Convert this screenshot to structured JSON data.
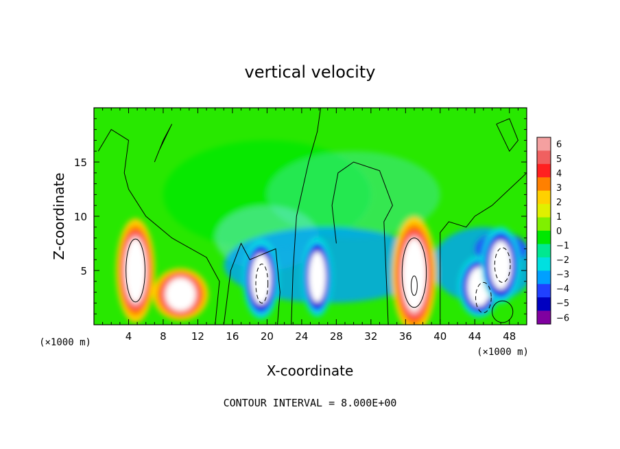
{
  "chart_data": {
    "type": "heatmap",
    "title": "vertical velocity",
    "xlabel": "X-coordinate",
    "ylabel": "Z-coordinate",
    "x_unit_label": "(×1000 m)",
    "y_unit_label": "(×1000 m)",
    "xlim": [
      0,
      50
    ],
    "ylim": [
      0,
      20
    ],
    "x_ticks": [
      "4",
      "8",
      "12",
      "16",
      "20",
      "24",
      "28",
      "32",
      "36",
      "40",
      "44",
      "48"
    ],
    "y_ticks": [
      "5",
      "10",
      "15"
    ],
    "footer": "CONTOUR INTERVAL = 8.000E+00",
    "colorbar": {
      "min": -6,
      "max": 6,
      "labels": [
        "6",
        "5",
        "4",
        "3",
        "2",
        "1",
        "0",
        "−1",
        "−2",
        "−3",
        "−4",
        "−5",
        "−6"
      ],
      "colors": [
        "#f4a0a0",
        "#f06060",
        "#ff2020",
        "#ff8000",
        "#ffd000",
        "#e0f000",
        "#80f000",
        "#00e800",
        "#00e890",
        "#00e0e0",
        "#00a0ff",
        "#2040ff",
        "#0000c0",
        "#8000a0"
      ]
    },
    "features": [
      {
        "kind": "updraft",
        "x": 4.8,
        "z": 5.0,
        "wmax": 6,
        "color": "#ffffff"
      },
      {
        "kind": "updraft",
        "x": 10.0,
        "z": 2.8,
        "wmax": 6,
        "color": "#ffffff"
      },
      {
        "kind": "downdraft",
        "x": 19.3,
        "z": 4.2,
        "wmin": -6
      },
      {
        "kind": "downdraft",
        "x": 25.8,
        "z": 4.4,
        "wmin": -6
      },
      {
        "kind": "updraft",
        "x": 37.0,
        "z": 4.6,
        "wmax": 6,
        "color": "#ffffff"
      },
      {
        "kind": "downdraft",
        "x": 44.5,
        "z": 3.5,
        "wmin": -6
      },
      {
        "kind": "downdraft",
        "x": 47.0,
        "z": 5.5,
        "wmin": -6
      }
    ]
  }
}
